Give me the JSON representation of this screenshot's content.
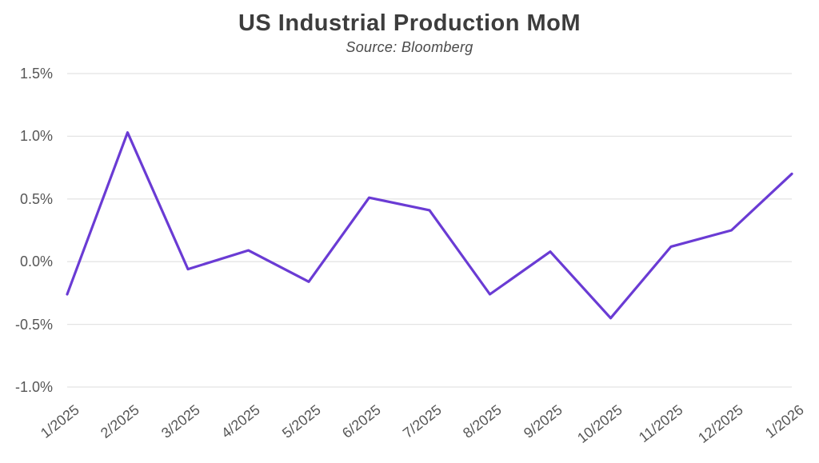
{
  "chart_data": {
    "type": "line",
    "title": "US Industrial Production MoM",
    "subtitle": "Source: Bloomberg",
    "categories": [
      "1/2025",
      "2/2025",
      "3/2025",
      "4/2025",
      "5/2025",
      "6/2025",
      "7/2025",
      "8/2025",
      "9/2025",
      "10/2025",
      "11/2025",
      "12/2025",
      "1/2026"
    ],
    "values": [
      -0.26,
      1.03,
      -0.06,
      0.09,
      -0.16,
      0.51,
      0.41,
      -0.26,
      0.08,
      -0.45,
      0.12,
      0.25,
      0.7
    ],
    "unit": "%",
    "xlabel": "",
    "ylabel": "",
    "ylim": [
      -1.0,
      1.5
    ],
    "yticks": [
      {
        "value": 1.5,
        "label": "1.5%"
      },
      {
        "value": 1.0,
        "label": "1.0%"
      },
      {
        "value": 0.5,
        "label": "0.5%"
      },
      {
        "value": 0.0,
        "label": "0.0%"
      },
      {
        "value": -0.5,
        "label": "-0.5%"
      },
      {
        "value": -1.0,
        "label": "-1.0%"
      }
    ],
    "grid": true,
    "legend_position": "none",
    "line_color": "#6a3bd4",
    "grid_color": "#e4e4e4",
    "title_color": "#3d3d3d",
    "tick_color": "#565656",
    "background_color": "#ffffff"
  }
}
